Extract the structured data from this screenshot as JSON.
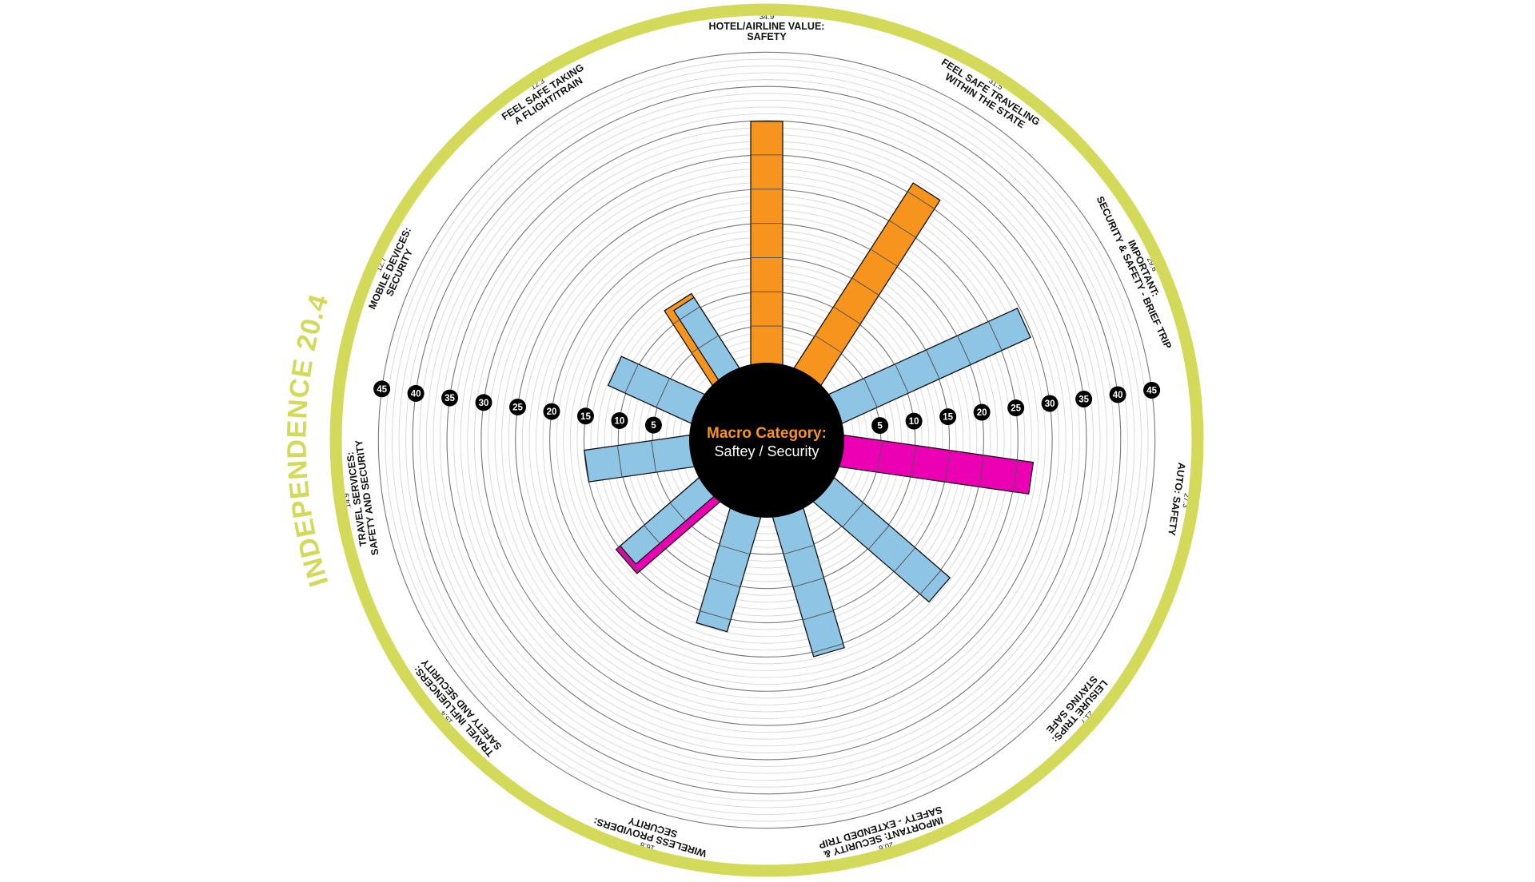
{
  "ring_title": "INDEPENDENCE 20.4",
  "center": {
    "heading": "Macro Category:",
    "subheading": "Saftey / Security"
  },
  "colors": {
    "ring": "#D3DA59",
    "orange": "#F7941D",
    "blue": "#8EC5E4",
    "pink": "#EC00B4",
    "center": "#000000",
    "heading": "#F7941D"
  },
  "chart_data": {
    "type": "radial-bar",
    "title": "",
    "rlim": [
      0,
      45
    ],
    "ticks": [
      5,
      10,
      15,
      20,
      25,
      30,
      35,
      40,
      45
    ],
    "grid": true,
    "categories": [
      {
        "name": [
          "HOTEL/AIRLINE VALUE:",
          "SAFETY"
        ],
        "label": "34.9",
        "value": 34.9,
        "color": "orange"
      },
      {
        "name": [
          "FEEL SAFE TRAVELING",
          "WITHIN THE STATE"
        ],
        "label": "31.5",
        "value": 31.5,
        "color": "orange"
      },
      {
        "name": [
          "IMPORTANT:",
          "SECURITY & SAFETY - BRIEF TRIP"
        ],
        "label": "29.6",
        "value": 29.6,
        "color": "blue"
      },
      {
        "name": [
          "AUTO: SAFETY"
        ],
        "label": "27.3",
        "value": 27.3,
        "color": "pink"
      },
      {
        "name": [
          "LEISURE TRIPS:",
          "STAYING SAFE"
        ],
        "label": "21.7",
        "value": 21.7,
        "color": "blue"
      },
      {
        "name": [
          "IMPORTANT: SECURITY &",
          "SAFETY - EXTENDED TRIP"
        ],
        "label": "20.6",
        "value": 20.6,
        "color": "blue"
      },
      {
        "name": [
          "WIRELESS PROVIDERS:",
          "SECURITY"
        ],
        "label": "16.8",
        "value": 16.8,
        "color": "blue"
      },
      {
        "name": [
          "TRAVEL INFLUENCERS:",
          "SAFETY AND SECURITY"
        ],
        "label": "15.4",
        "value": 15.4,
        "color": "pink",
        "overlay": 14.6
      },
      {
        "name": [
          "TRAVEL SERVICES:",
          "SAFETY AND SECURITY"
        ],
        "label": "14.9",
        "value": 14.9,
        "color": "blue"
      },
      {
        "name": [
          "MOBILE DEVICES:",
          "SECURITY"
        ],
        "label": "12.7",
        "value": 12.7,
        "color": "blue"
      },
      {
        "name": [
          "FEEL SAFE TAKING",
          "A FLIGHT/TRAIN"
        ],
        "label": "12.3",
        "value": 12.3,
        "color": "orange",
        "overlay": 11.6
      }
    ]
  }
}
